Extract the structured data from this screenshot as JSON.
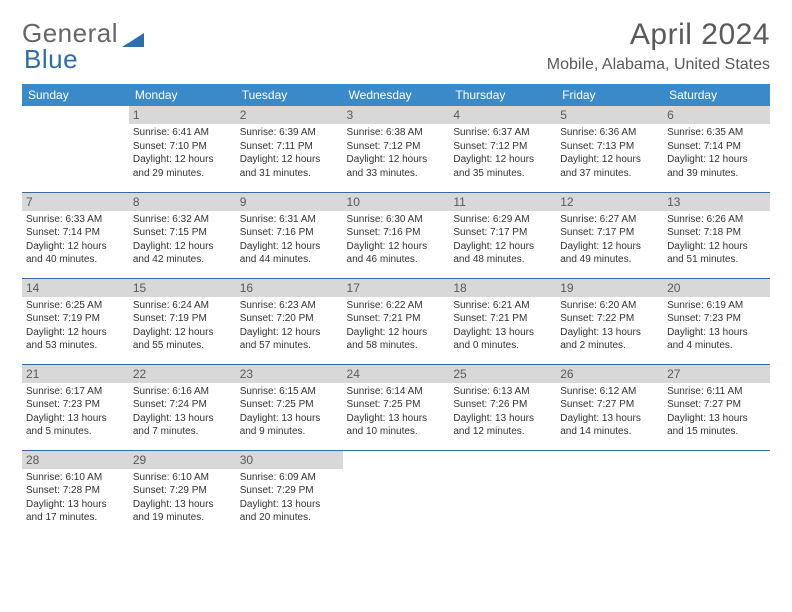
{
  "brand": {
    "part1": "General",
    "part2": "Blue"
  },
  "header": {
    "month_year": "April 2024",
    "location": "Mobile, Alabama, United States"
  },
  "colors": {
    "header_bg": "#3a8ac9",
    "header_fg": "#ffffff",
    "daynum_bg": "#d8d8d8",
    "rule": "#3a6a9a",
    "brand_blue": "#2e6fab"
  },
  "weekdays": [
    "Sunday",
    "Monday",
    "Tuesday",
    "Wednesday",
    "Thursday",
    "Friday",
    "Saturday"
  ],
  "weeks": [
    [
      {
        "blank": true
      },
      {
        "day": "1",
        "sunrise": "6:41 AM",
        "sunset": "7:10 PM",
        "daylight": "12 hours and 29 minutes."
      },
      {
        "day": "2",
        "sunrise": "6:39 AM",
        "sunset": "7:11 PM",
        "daylight": "12 hours and 31 minutes."
      },
      {
        "day": "3",
        "sunrise": "6:38 AM",
        "sunset": "7:12 PM",
        "daylight": "12 hours and 33 minutes."
      },
      {
        "day": "4",
        "sunrise": "6:37 AM",
        "sunset": "7:12 PM",
        "daylight": "12 hours and 35 minutes."
      },
      {
        "day": "5",
        "sunrise": "6:36 AM",
        "sunset": "7:13 PM",
        "daylight": "12 hours and 37 minutes."
      },
      {
        "day": "6",
        "sunrise": "6:35 AM",
        "sunset": "7:14 PM",
        "daylight": "12 hours and 39 minutes."
      }
    ],
    [
      {
        "day": "7",
        "sunrise": "6:33 AM",
        "sunset": "7:14 PM",
        "daylight": "12 hours and 40 minutes."
      },
      {
        "day": "8",
        "sunrise": "6:32 AM",
        "sunset": "7:15 PM",
        "daylight": "12 hours and 42 minutes."
      },
      {
        "day": "9",
        "sunrise": "6:31 AM",
        "sunset": "7:16 PM",
        "daylight": "12 hours and 44 minutes."
      },
      {
        "day": "10",
        "sunrise": "6:30 AM",
        "sunset": "7:16 PM",
        "daylight": "12 hours and 46 minutes."
      },
      {
        "day": "11",
        "sunrise": "6:29 AM",
        "sunset": "7:17 PM",
        "daylight": "12 hours and 48 minutes."
      },
      {
        "day": "12",
        "sunrise": "6:27 AM",
        "sunset": "7:17 PM",
        "daylight": "12 hours and 49 minutes."
      },
      {
        "day": "13",
        "sunrise": "6:26 AM",
        "sunset": "7:18 PM",
        "daylight": "12 hours and 51 minutes."
      }
    ],
    [
      {
        "day": "14",
        "sunrise": "6:25 AM",
        "sunset": "7:19 PM",
        "daylight": "12 hours and 53 minutes."
      },
      {
        "day": "15",
        "sunrise": "6:24 AM",
        "sunset": "7:19 PM",
        "daylight": "12 hours and 55 minutes."
      },
      {
        "day": "16",
        "sunrise": "6:23 AM",
        "sunset": "7:20 PM",
        "daylight": "12 hours and 57 minutes."
      },
      {
        "day": "17",
        "sunrise": "6:22 AM",
        "sunset": "7:21 PM",
        "daylight": "12 hours and 58 minutes."
      },
      {
        "day": "18",
        "sunrise": "6:21 AM",
        "sunset": "7:21 PM",
        "daylight": "13 hours and 0 minutes."
      },
      {
        "day": "19",
        "sunrise": "6:20 AM",
        "sunset": "7:22 PM",
        "daylight": "13 hours and 2 minutes."
      },
      {
        "day": "20",
        "sunrise": "6:19 AM",
        "sunset": "7:23 PM",
        "daylight": "13 hours and 4 minutes."
      }
    ],
    [
      {
        "day": "21",
        "sunrise": "6:17 AM",
        "sunset": "7:23 PM",
        "daylight": "13 hours and 5 minutes."
      },
      {
        "day": "22",
        "sunrise": "6:16 AM",
        "sunset": "7:24 PM",
        "daylight": "13 hours and 7 minutes."
      },
      {
        "day": "23",
        "sunrise": "6:15 AM",
        "sunset": "7:25 PM",
        "daylight": "13 hours and 9 minutes."
      },
      {
        "day": "24",
        "sunrise": "6:14 AM",
        "sunset": "7:25 PM",
        "daylight": "13 hours and 10 minutes."
      },
      {
        "day": "25",
        "sunrise": "6:13 AM",
        "sunset": "7:26 PM",
        "daylight": "13 hours and 12 minutes."
      },
      {
        "day": "26",
        "sunrise": "6:12 AM",
        "sunset": "7:27 PM",
        "daylight": "13 hours and 14 minutes."
      },
      {
        "day": "27",
        "sunrise": "6:11 AM",
        "sunset": "7:27 PM",
        "daylight": "13 hours and 15 minutes."
      }
    ],
    [
      {
        "day": "28",
        "sunrise": "6:10 AM",
        "sunset": "7:28 PM",
        "daylight": "13 hours and 17 minutes."
      },
      {
        "day": "29",
        "sunrise": "6:10 AM",
        "sunset": "7:29 PM",
        "daylight": "13 hours and 19 minutes."
      },
      {
        "day": "30",
        "sunrise": "6:09 AM",
        "sunset": "7:29 PM",
        "daylight": "13 hours and 20 minutes."
      },
      {
        "blank": true
      },
      {
        "blank": true
      },
      {
        "blank": true
      },
      {
        "blank": true
      }
    ]
  ],
  "labels": {
    "sunrise_prefix": "Sunrise: ",
    "sunset_prefix": "Sunset: ",
    "daylight_prefix": "Daylight: "
  }
}
